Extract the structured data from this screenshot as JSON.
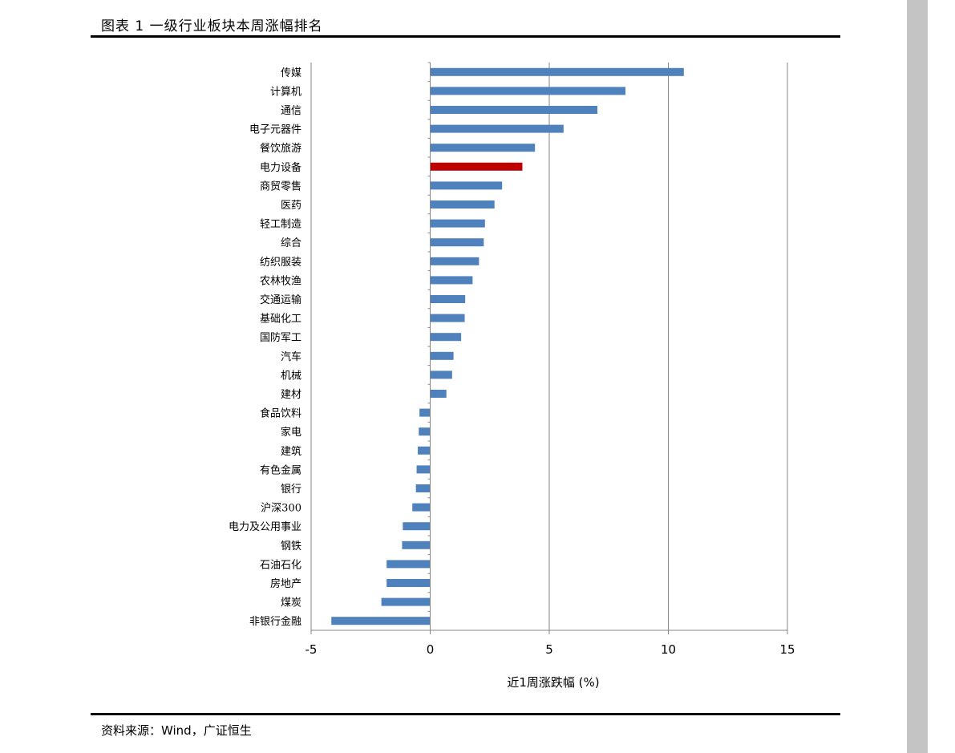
{
  "header": {
    "title": "图表 1 一级行业板块本周涨幅排名"
  },
  "footer": {
    "source": "资料来源：Wind，广证恒生"
  },
  "colors": {
    "default_bar": "#4f81bd",
    "highlight_bar": "#c00000",
    "grid": "#868686"
  },
  "chart_data": {
    "type": "bar",
    "orientation": "horizontal",
    "xlabel": "近1周涨跌幅 (%)",
    "xlim": [
      -5,
      15
    ],
    "xticks": [
      -5,
      0,
      5,
      10,
      15
    ],
    "grid": true,
    "highlight": "电力设备",
    "categories": [
      "传媒",
      "计算机",
      "通信",
      "电子元器件",
      "餐饮旅游",
      "电力设备",
      "商贸零售",
      "医药",
      "轻工制造",
      "综合",
      "纺织服装",
      "农林牧渔",
      "交通运输",
      "基础化工",
      "国防军工",
      "汽车",
      "机械",
      "建材",
      "食品饮料",
      "家电",
      "建筑",
      "有色金属",
      "银行",
      "沪深300",
      "电力及公用事业",
      "钢铁",
      "石油石化",
      "房地产",
      "煤炭",
      "非银行金融"
    ],
    "values": [
      10.65,
      8.2,
      7.02,
      5.6,
      4.4,
      3.87,
      3.02,
      2.7,
      2.3,
      2.25,
      2.05,
      1.78,
      1.47,
      1.45,
      1.3,
      0.98,
      0.92,
      0.68,
      -0.45,
      -0.48,
      -0.52,
      -0.57,
      -0.6,
      -0.75,
      -1.15,
      -1.18,
      -1.83,
      -1.83,
      -2.05,
      -4.15
    ]
  }
}
